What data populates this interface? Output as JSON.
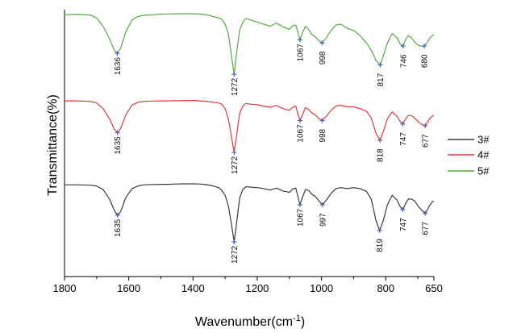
{
  "chart_data": {
    "type": "line",
    "title": "",
    "xlabel": "Wavenumber(cm",
    "xlabel_sup": "-1",
    "xlabel_close": ")",
    "ylabel": "Transmittance(%)",
    "xlim": [
      1800,
      650
    ],
    "x_reversed": true,
    "x_ticks": [
      1800,
      1600,
      1400,
      1200,
      1000,
      800,
      650
    ],
    "y_ticks_shown": false,
    "grid": false,
    "legend_position": "right",
    "series": [
      {
        "name": "3#",
        "color": "#3a3a3a",
        "x": [
          1800,
          1760,
          1720,
          1700,
          1680,
          1660,
          1645,
          1635,
          1625,
          1610,
          1590,
          1570,
          1550,
          1520,
          1500,
          1480,
          1450,
          1420,
          1400,
          1380,
          1360,
          1340,
          1320,
          1310,
          1300,
          1290,
          1280,
          1272,
          1265,
          1255,
          1245,
          1235,
          1220,
          1200,
          1180,
          1160,
          1140,
          1120,
          1100,
          1090,
          1080,
          1075,
          1067,
          1060,
          1050,
          1040,
          1030,
          1020,
          1010,
          997,
          985,
          970,
          955,
          940,
          920,
          900,
          880,
          860,
          845,
          830,
          819,
          808,
          795,
          780,
          765,
          755,
          747,
          740,
          730,
          720,
          710,
          700,
          690,
          677,
          670,
          662,
          655,
          650
        ],
        "y": [
          100,
          100,
          99.6,
          98.8,
          95,
          85,
          73,
          68,
          72,
          86,
          96,
          99,
          100,
          100.3,
          100.5,
          100.5,
          100.8,
          101,
          101,
          100.8,
          100.2,
          99,
          97,
          94,
          89,
          78,
          58,
          40,
          58,
          86,
          95,
          98,
          97.5,
          97,
          96,
          94.5,
          96.5,
          93.5,
          92,
          95.5,
          96.5,
          90,
          79,
          86,
          95,
          94,
          90,
          88,
          84,
          79,
          84,
          91,
          96,
          97,
          96,
          97,
          96,
          93,
          85,
          62,
          52,
          62,
          79,
          89,
          84,
          77,
          74,
          79,
          85,
          85,
          83,
          78,
          74,
          70,
          74,
          79,
          82,
          83
        ]
      },
      {
        "name": "4#",
        "color": "#e03a3a",
        "x": [
          1800,
          1760,
          1720,
          1700,
          1680,
          1660,
          1645,
          1635,
          1625,
          1610,
          1590,
          1570,
          1550,
          1520,
          1500,
          1480,
          1450,
          1420,
          1400,
          1380,
          1360,
          1340,
          1320,
          1310,
          1300,
          1290,
          1280,
          1272,
          1265,
          1255,
          1245,
          1235,
          1220,
          1200,
          1180,
          1160,
          1140,
          1120,
          1100,
          1090,
          1080,
          1075,
          1067,
          1060,
          1050,
          1040,
          1030,
          1020,
          1010,
          998,
          985,
          970,
          955,
          940,
          920,
          900,
          880,
          860,
          845,
          830,
          818,
          808,
          795,
          780,
          765,
          755,
          747,
          740,
          730,
          720,
          710,
          700,
          690,
          677,
          670,
          662,
          655,
          650
        ],
        "y": [
          100,
          100,
          99.4,
          97.5,
          91,
          79,
          67,
          63,
          68,
          83,
          95,
          98.5,
          99.5,
          99.8,
          100,
          100,
          100.2,
          100.4,
          100.5,
          100,
          99.5,
          98.5,
          97.5,
          96,
          91,
          79,
          58,
          40,
          58,
          85,
          94,
          97,
          96,
          95.5,
          94,
          92.5,
          94.5,
          91,
          89,
          92.5,
          94,
          87,
          77,
          83,
          92,
          90,
          86,
          84,
          80,
          77,
          82,
          89,
          94,
          95,
          93,
          93,
          91,
          88,
          80,
          62,
          54,
          64,
          79,
          87,
          82,
          76,
          73,
          78,
          83,
          83,
          80,
          76,
          73,
          71,
          75,
          80,
          82,
          83
        ]
      },
      {
        "name": "5#",
        "color": "#4fae3f",
        "x": [
          1800,
          1760,
          1720,
          1700,
          1680,
          1660,
          1645,
          1636,
          1625,
          1610,
          1590,
          1570,
          1550,
          1520,
          1500,
          1480,
          1450,
          1420,
          1400,
          1380,
          1360,
          1340,
          1320,
          1310,
          1300,
          1290,
          1280,
          1272,
          1265,
          1255,
          1245,
          1235,
          1220,
          1200,
          1180,
          1160,
          1140,
          1120,
          1100,
          1090,
          1080,
          1075,
          1067,
          1060,
          1050,
          1040,
          1030,
          1020,
          1010,
          998,
          985,
          970,
          955,
          940,
          920,
          900,
          880,
          860,
          845,
          830,
          817,
          808,
          795,
          780,
          765,
          755,
          746,
          740,
          730,
          720,
          710,
          700,
          690,
          680,
          670,
          662,
          655,
          650
        ],
        "y": [
          100,
          100.5,
          99.8,
          97,
          89,
          77,
          66,
          63,
          68,
          83,
          95,
          98.5,
          99.5,
          100,
          100.5,
          100.8,
          101,
          101,
          101,
          100.6,
          100,
          98.5,
          97,
          95.5,
          91,
          82,
          60,
          43,
          62,
          85,
          93,
          96.5,
          95,
          93,
          91,
          89,
          92,
          88.5,
          86,
          89.5,
          90,
          85,
          76,
          82,
          89,
          86,
          81,
          79,
          76,
          73,
          78,
          85,
          90,
          91,
          87,
          85,
          80,
          73,
          66,
          56,
          52,
          60,
          73,
          82,
          78,
          72,
          70,
          75,
          80,
          78,
          74,
          71,
          70,
          70,
          74,
          78,
          80,
          81
        ]
      }
    ],
    "annotations": [
      {
        "series": "5#",
        "labels": [
          "1636",
          "1272",
          "1067",
          "998",
          "817",
          "746",
          "680"
        ]
      },
      {
        "series": "4#",
        "labels": [
          "1635",
          "1272",
          "1067",
          "998",
          "818",
          "747",
          "677"
        ]
      },
      {
        "series": "3#",
        "labels": [
          "1635",
          "1272",
          "1067",
          "997",
          "819",
          "747",
          "677"
        ]
      }
    ]
  }
}
